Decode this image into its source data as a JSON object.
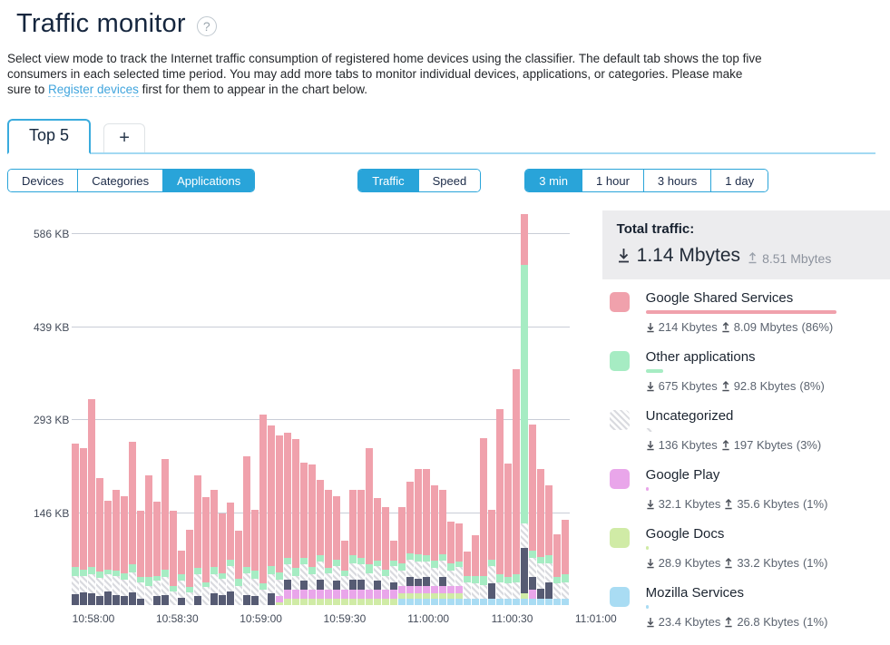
{
  "page": {
    "title": "Traffic monitor",
    "help": "?"
  },
  "description": {
    "body": "Select view mode to track the Internet traffic consumption of registered home devices using the classifier. The default tab shows the top five consumers in each selected time period. You may add more tabs to monitor individual devices, applications, or categories. Please make sure to ",
    "link": "Register devices",
    "tail": " first for them to appear in the chart below."
  },
  "tabs": {
    "active": "Top 5",
    "add": "+"
  },
  "controls": {
    "view_modes": [
      {
        "label": "Devices",
        "selected": false
      },
      {
        "label": "Categories",
        "selected": false
      },
      {
        "label": "Applications",
        "selected": true
      }
    ],
    "metric_modes": [
      {
        "label": "Traffic",
        "selected": true
      },
      {
        "label": "Speed",
        "selected": false
      }
    ],
    "time_ranges": [
      {
        "label": "3 min",
        "selected": true
      },
      {
        "label": "1 hour",
        "selected": false
      },
      {
        "label": "3 hours",
        "selected": false
      },
      {
        "label": "1 day",
        "selected": false
      }
    ]
  },
  "totals": {
    "heading": "Total traffic:",
    "download": "1.14 Mbytes",
    "upload": "8.51 Mbytes"
  },
  "legend": [
    {
      "name": "Google Shared Services",
      "color": "#f0a1ac",
      "hatch": false,
      "down": "214 Kbytes",
      "up": "8.09 Mbytes",
      "share": "(86%)",
      "pct": 86
    },
    {
      "name": "Other applications",
      "color": "#a6ecc3",
      "hatch": false,
      "down": "675 Kbytes",
      "up": "92.8 Kbytes",
      "share": "(8%)",
      "pct": 8
    },
    {
      "name": "Uncategorized",
      "color": "#dcdde1",
      "hatch": true,
      "down": "136 Kbytes",
      "up": "197 Kbytes",
      "share": "(3%)",
      "pct": 3
    },
    {
      "name": "Google Play",
      "color": "#e9a6ea",
      "hatch": false,
      "down": "32.1 Kbytes",
      "up": "35.6 Kbytes",
      "share": "(1%)",
      "pct": 1
    },
    {
      "name": "Google Docs",
      "color": "#d0eba6",
      "hatch": false,
      "down": "28.9 Kbytes",
      "up": "33.2 Kbytes",
      "share": "(1%)",
      "pct": 1
    },
    {
      "name": "Mozilla Services",
      "color": "#a9dcf3",
      "hatch": false,
      "down": "23.4 Kbytes",
      "up": "26.8 Kbytes",
      "share": "(1%)",
      "pct": 1
    }
  ],
  "chart_data": {
    "type": "bar",
    "stacked": true,
    "unit": "KB",
    "bar_interval_seconds": 3,
    "ylim": [
      0,
      620
    ],
    "grid": true,
    "yticks": [
      {
        "label": "146 KB",
        "kb": 146
      },
      {
        "label": "293 KB",
        "kb": 293
      },
      {
        "label": "439 KB",
        "kb": 439
      },
      {
        "label": "586 KB",
        "kb": 586
      }
    ],
    "xticks": [
      "10:58:00",
      "10:58:30",
      "10:59:00",
      "10:59:30",
      "11:00:00",
      "11:00:30",
      "11:01:00"
    ],
    "series_order": [
      "mozilla_services",
      "google_docs",
      "google_play",
      "unlabeled_dark",
      "uncategorized",
      "other_applications",
      "google_shared_services"
    ],
    "series_colors": {
      "mozilla_services": "#a9dcf3",
      "google_docs": "#d0eba6",
      "google_play": "#e9a6ea",
      "unlabeled_dark": "#565b73",
      "uncategorized": "hatch",
      "other_applications": "#a6ecc3",
      "google_shared_services": "#f0a1ac"
    },
    "bars_kb": [
      [
        0,
        0,
        0,
        17,
        29,
        14,
        194
      ],
      [
        0,
        0,
        0,
        20,
        26,
        10,
        191
      ],
      [
        0,
        0,
        0,
        18,
        30,
        12,
        265
      ],
      [
        0,
        0,
        0,
        15,
        28,
        10,
        147
      ],
      [
        0,
        0,
        0,
        22,
        26,
        8,
        108
      ],
      [
        0,
        0,
        0,
        16,
        30,
        9,
        126
      ],
      [
        0,
        0,
        0,
        14,
        26,
        10,
        121
      ],
      [
        0,
        0,
        0,
        20,
        32,
        12,
        193
      ],
      [
        0,
        0,
        0,
        10,
        26,
        8,
        105
      ],
      [
        0,
        0,
        0,
        0,
        30,
        14,
        161
      ],
      [
        0,
        0,
        0,
        14,
        24,
        8,
        117
      ],
      [
        0,
        0,
        0,
        16,
        28,
        12,
        174
      ],
      [
        0,
        0,
        0,
        0,
        22,
        8,
        118
      ],
      [
        0,
        0,
        0,
        12,
        26,
        10,
        38
      ],
      [
        0,
        0,
        0,
        0,
        20,
        8,
        90
      ],
      [
        0,
        0,
        0,
        14,
        34,
        10,
        147
      ],
      [
        0,
        0,
        0,
        0,
        28,
        8,
        134
      ],
      [
        0,
        0,
        0,
        18,
        30,
        12,
        122
      ],
      [
        0,
        0,
        0,
        16,
        26,
        8,
        95
      ],
      [
        0,
        0,
        0,
        22,
        40,
        10,
        90
      ],
      [
        0,
        0,
        0,
        0,
        30,
        12,
        75
      ],
      [
        0,
        0,
        0,
        16,
        34,
        10,
        175
      ],
      [
        0,
        0,
        0,
        14,
        28,
        12,
        96
      ],
      [
        0,
        0,
        0,
        0,
        24,
        10,
        266
      ],
      [
        0,
        0,
        0,
        18,
        30,
        14,
        221
      ],
      [
        0,
        4,
        10,
        0,
        26,
        12,
        215
      ],
      [
        0,
        10,
        14,
        16,
        24,
        10,
        197
      ],
      [
        0,
        10,
        14,
        0,
        22,
        12,
        204
      ],
      [
        0,
        10,
        14,
        14,
        26,
        10,
        151
      ],
      [
        0,
        10,
        14,
        0,
        24,
        12,
        161
      ],
      [
        0,
        10,
        14,
        16,
        28,
        10,
        119
      ],
      [
        0,
        10,
        14,
        0,
        26,
        8,
        123
      ],
      [
        0,
        10,
        14,
        14,
        24,
        10,
        99
      ],
      [
        0,
        10,
        14,
        0,
        22,
        8,
        48
      ],
      [
        0,
        10,
        14,
        16,
        26,
        12,
        104
      ],
      [
        0,
        10,
        14,
        16,
        24,
        10,
        108
      ],
      [
        0,
        10,
        14,
        0,
        26,
        14,
        183
      ],
      [
        0,
        10,
        14,
        14,
        24,
        8,
        99
      ],
      [
        0,
        10,
        14,
        0,
        22,
        10,
        98
      ],
      [
        0,
        10,
        14,
        12,
        26,
        8,
        32
      ],
      [
        10,
        8,
        12,
        0,
        24,
        12,
        88
      ],
      [
        10,
        8,
        12,
        14,
        28,
        10,
        113
      ],
      [
        10,
        8,
        12,
        12,
        26,
        12,
        135
      ],
      [
        10,
        8,
        12,
        14,
        24,
        10,
        136
      ],
      [
        10,
        8,
        12,
        0,
        28,
        12,
        118
      ],
      [
        10,
        8,
        12,
        14,
        26,
        10,
        101
      ],
      [
        10,
        8,
        12,
        0,
        24,
        12,
        66
      ],
      [
        10,
        8,
        12,
        0,
        30,
        8,
        60
      ],
      [
        10,
        0,
        0,
        0,
        26,
        10,
        39
      ],
      [
        10,
        0,
        0,
        0,
        24,
        12,
        64
      ],
      [
        10,
        0,
        0,
        0,
        22,
        14,
        217
      ],
      [
        10,
        0,
        0,
        24,
        28,
        10,
        78
      ],
      [
        10,
        0,
        0,
        0,
        26,
        12,
        260
      ],
      [
        10,
        0,
        0,
        0,
        24,
        10,
        179
      ],
      [
        10,
        0,
        0,
        0,
        26,
        12,
        323
      ],
      [
        10,
        9,
        0,
        71,
        39,
        407,
        80
      ],
      [
        10,
        0,
        14,
        20,
        30,
        12,
        198
      ],
      [
        10,
        0,
        0,
        16,
        40,
        10,
        138
      ],
      [
        10,
        0,
        0,
        26,
        30,
        12,
        110
      ],
      [
        10,
        0,
        0,
        0,
        24,
        10,
        67
      ],
      [
        10,
        0,
        0,
        0,
        26,
        12,
        87
      ]
    ]
  }
}
